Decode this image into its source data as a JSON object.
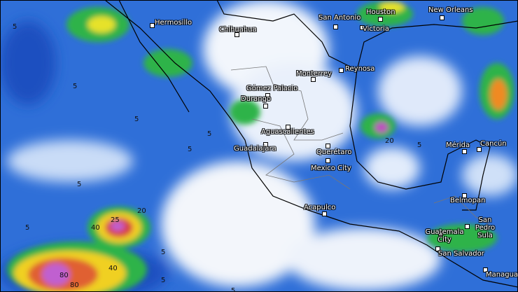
{
  "cities": [
    "Hermosillo",
    "Chihuahua",
    "San Antonio",
    "Houston",
    "Victoria",
    "New Orleans",
    "Monterrey",
    "Reynosa",
    "Gómez Palacio",
    "Durango",
    "Aguascalientes",
    "Guadalajara",
    "Querétaro",
    "Mexico City",
    "Acapulco",
    "Mérida",
    "Cancún",
    "Belmopan",
    "San Pedro Sula",
    "Guatemala City",
    "San Salvador",
    "Managua"
  ],
  "contour_labels": [
    "5",
    "5",
    "5",
    "5",
    "5",
    "5",
    "5",
    "5",
    "5",
    "5",
    "40",
    "25",
    "20",
    "80",
    "40",
    "80",
    "20",
    "5"
  ]
}
